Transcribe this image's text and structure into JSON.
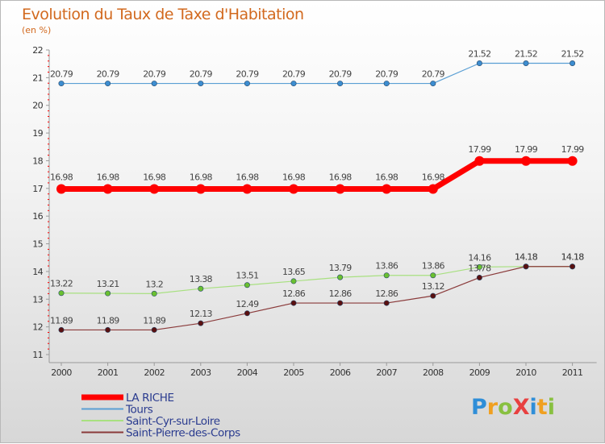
{
  "title": "Evolution du Taux de Taxe d'Habitation",
  "subtitle": "(en %)",
  "logo": {
    "text": "ProXiti",
    "letters": [
      "P",
      "r",
      "o",
      "X",
      "i",
      "t",
      "i"
    ],
    "colors": [
      "#2f8ed8",
      "#f0a020",
      "#88c040",
      "#e84040",
      "#2f8ed8",
      "#f0a020",
      "#88c040"
    ]
  },
  "chart_data": {
    "type": "line",
    "title": "Evolution du Taux de Taxe d'Habitation",
    "ylabel": "(en %)",
    "xlabel": "",
    "categories": [
      "2000",
      "2001",
      "2002",
      "2003",
      "2004",
      "2005",
      "2006",
      "2007",
      "2008",
      "2009",
      "2010",
      "2011"
    ],
    "ylim": [
      11,
      22
    ],
    "yticks": [
      11,
      12,
      13,
      14,
      15,
      16,
      17,
      18,
      19,
      20,
      21,
      22
    ],
    "grid": false,
    "legend_position": "bottom-left",
    "series": [
      {
        "name": "Tours",
        "color": "#5a9fd4",
        "marker": "#3d8dd0",
        "width": 1.2,
        "labels": "above",
        "values": [
          20.79,
          20.79,
          20.79,
          20.79,
          20.79,
          20.79,
          20.79,
          20.79,
          20.79,
          21.52,
          21.52,
          21.52
        ],
        "value_labels": [
          "20.79",
          "20.79",
          "20.79",
          "20.79",
          "20.79",
          "20.79",
          "20.79",
          "20.79",
          "20.79",
          "21.52",
          "21.52",
          "21.52"
        ]
      },
      {
        "name": "LA RICHE",
        "color": "#ff0000",
        "marker": "#ff0000",
        "width": 7,
        "labels": "above",
        "values": [
          16.98,
          16.98,
          16.98,
          16.98,
          16.98,
          16.98,
          16.98,
          16.98,
          16.98,
          17.99,
          17.99,
          17.99
        ],
        "value_labels": [
          "16.98",
          "16.98",
          "16.98",
          "16.98",
          "16.98",
          "16.98",
          "16.98",
          "16.98",
          "16.98",
          "17.99",
          "17.99",
          "17.99"
        ]
      },
      {
        "name": "Saint-Cyr-sur-Loire",
        "color": "#a8e080",
        "marker": "#6ac030",
        "width": 1.2,
        "labels": "above",
        "values": [
          13.22,
          13.21,
          13.2,
          13.38,
          13.51,
          13.65,
          13.79,
          13.86,
          13.86,
          14.16,
          14.18,
          14.18
        ],
        "value_labels": [
          "13.22",
          "13.21",
          "13.2",
          "13.38",
          "13.51",
          "13.65",
          "13.79",
          "13.86",
          "13.86",
          "14.16",
          "14.18",
          "14.18"
        ]
      },
      {
        "name": "Saint-Pierre-des-Corps",
        "color": "#8a3a3a",
        "marker": "#5a1010",
        "width": 1.2,
        "labels": "above",
        "values": [
          11.89,
          11.89,
          11.89,
          12.13,
          12.49,
          12.86,
          12.86,
          12.86,
          13.12,
          13.78,
          14.18,
          14.18
        ],
        "value_labels": [
          "11.89",
          "11.89",
          "11.89",
          "12.13",
          "12.49",
          "12.86",
          "12.86",
          "12.86",
          "13.12",
          "13.78",
          "14.18",
          "14.18"
        ]
      }
    ],
    "legend": [
      "LA RICHE",
      "Tours",
      "Saint-Cyr-sur-Loire",
      "Saint-Pierre-des-Corps"
    ]
  }
}
